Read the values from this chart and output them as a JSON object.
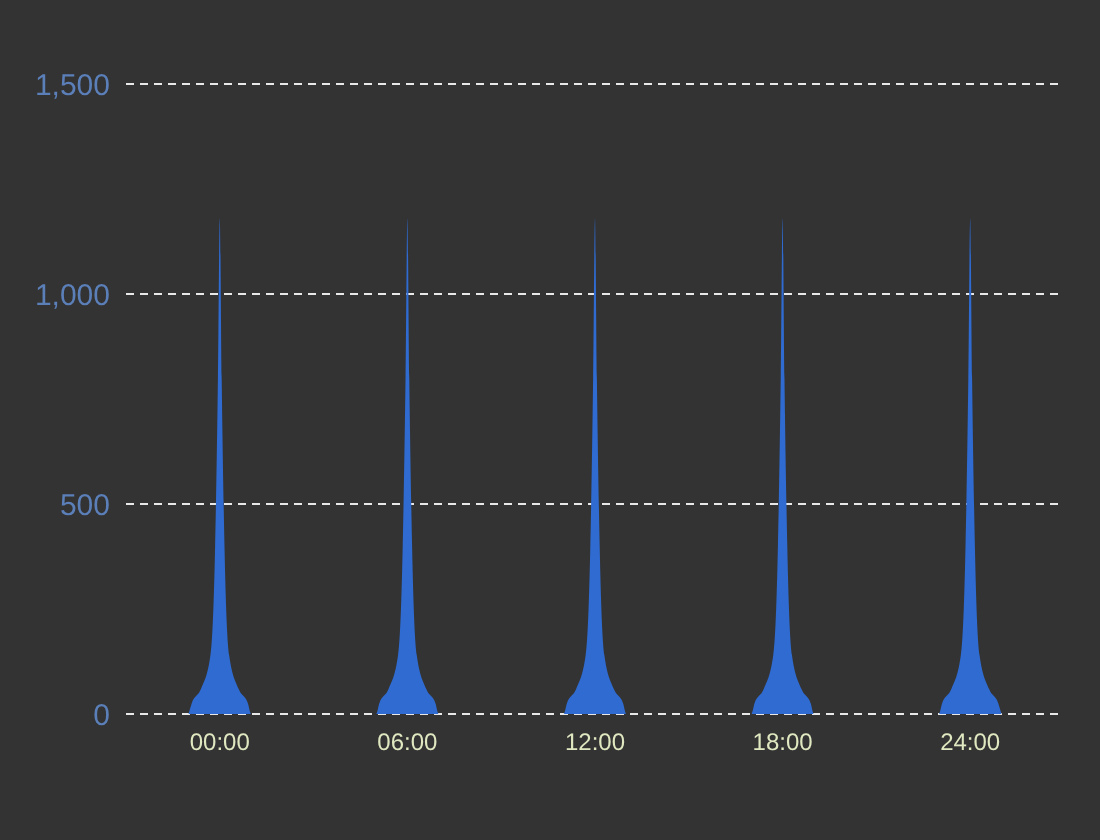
{
  "chart_data": {
    "type": "area",
    "x": [
      -1,
      -0.9,
      -0.6,
      -0.3,
      -0.15,
      -0.06,
      0,
      0.06,
      0.15,
      0.3,
      0.6,
      0.9,
      1,
      5,
      5.1,
      5.4,
      5.7,
      5.85,
      5.94,
      6,
      6.06,
      6.15,
      6.3,
      6.6,
      6.9,
      7,
      11,
      11.1,
      11.4,
      11.7,
      11.85,
      11.94,
      12,
      12.06,
      12.15,
      12.3,
      12.6,
      12.9,
      13,
      17,
      17.1,
      17.4,
      17.7,
      17.85,
      17.94,
      18,
      18.06,
      18.15,
      18.3,
      18.6,
      18.9,
      19,
      23,
      23.1,
      23.4,
      23.7,
      23.85,
      23.94,
      24,
      24.06,
      24.15,
      24.3,
      24.6,
      24.9,
      25
    ],
    "series": [
      {
        "color": "#2f6bd1",
        "values": [
          0,
          25,
          60,
          140,
          400,
          800,
          1180,
          800,
          400,
          140,
          60,
          25,
          0,
          0,
          25,
          60,
          140,
          400,
          800,
          1180,
          800,
          400,
          140,
          60,
          25,
          0,
          0,
          25,
          60,
          140,
          400,
          800,
          1180,
          800,
          400,
          140,
          60,
          25,
          0,
          0,
          25,
          60,
          140,
          400,
          800,
          1180,
          800,
          400,
          140,
          60,
          25,
          0,
          0,
          25,
          60,
          140,
          400,
          800,
          1180,
          800,
          400,
          140,
          60,
          25,
          0
        ]
      }
    ],
    "xlim": [
      -3,
      27
    ],
    "xticks": [
      {
        "value": 0,
        "label": "00:00"
      },
      {
        "value": 6,
        "label": "06:00"
      },
      {
        "value": 12,
        "label": "12:00"
      },
      {
        "value": 18,
        "label": "18:00"
      },
      {
        "value": 24,
        "label": "24:00"
      }
    ],
    "ylim": [
      0,
      1500
    ],
    "yticks": [
      {
        "value": 0,
        "label": "0"
      },
      {
        "value": 500,
        "label": "500"
      },
      {
        "value": 1000,
        "label": "1,000"
      },
      {
        "value": 1500,
        "label": "1,500"
      }
    ],
    "grid": "y"
  }
}
